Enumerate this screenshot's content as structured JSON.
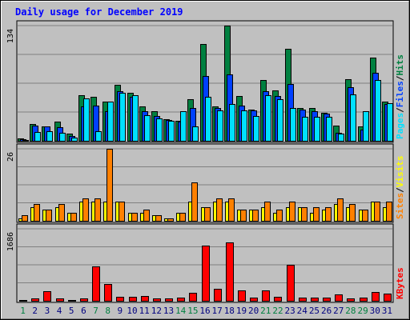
{
  "chart_data": {
    "type": "bar",
    "title": "Daily usage for December 2019",
    "categories": [
      "1",
      "2",
      "3",
      "4",
      "5",
      "6",
      "7",
      "8",
      "9",
      "10",
      "11",
      "12",
      "13",
      "14",
      "15",
      "16",
      "17",
      "18",
      "19",
      "20",
      "21",
      "22",
      "23",
      "24",
      "25",
      "26",
      "27",
      "28",
      "29",
      "30",
      "31"
    ],
    "weekend_days": [
      "1",
      "7",
      "8",
      "14",
      "15",
      "21",
      "22",
      "28",
      "29"
    ],
    "panels": [
      {
        "name": "hits-files-pages",
        "ymax": 134,
        "ymax_label": "134",
        "legend": [
          {
            "label": "Pages",
            "color": "#00e0ff"
          },
          {
            "label": "Files",
            "color": "#0040ff"
          },
          {
            "label": "Hits",
            "color": "#008040"
          }
        ],
        "separators": [
          "/",
          "/"
        ],
        "series": [
          {
            "name": "Hits",
            "color": "#008040",
            "values": [
              3,
              20,
              17,
              22,
              8,
              53,
              51,
              46,
              65,
              56,
              40,
              34,
              25,
              23,
              48,
              113,
              40,
              134,
              52,
              36,
              71,
              59,
              107,
              38,
              38,
              33,
              18,
              72,
              17,
              97,
              46
            ]
          },
          {
            "name": "Files",
            "color": "#0040ff",
            "values": [
              2,
              18,
              17,
              16,
              6,
              40,
              41,
              34,
              58,
              51,
              34,
              29,
              24,
              22,
              38,
              75,
              38,
              77,
              41,
              35,
              58,
              52,
              66,
              36,
              34,
              32,
              9,
              62,
              13,
              79,
              43
            ]
          },
          {
            "name": "Pages",
            "color": "#00e0ff",
            "values": [
              1,
              10,
              11,
              9,
              4,
              49,
              11,
              46,
              56,
              53,
              30,
              26,
              23,
              34,
              17,
              51,
              35,
              43,
              35,
              29,
              53,
              48,
              38,
              28,
              28,
              28,
              8,
              54,
              34,
              71,
              44
            ]
          }
        ]
      },
      {
        "name": "visits-sites",
        "ymax": 26,
        "ymax_label": "26",
        "legend": [
          {
            "label": "Sites",
            "color": "#ff8000"
          },
          {
            "label": "Visits",
            "color": "#ffff00"
          }
        ],
        "separators": [
          "/"
        ],
        "series": [
          {
            "name": "Visits",
            "color": "#ffff00",
            "values": [
              1,
              5,
              4,
              5,
              3,
              7,
              7,
              7,
              7,
              3,
              3,
              2,
              1,
              3,
              7,
              5,
              7,
              7,
              4,
              4,
              5,
              3,
              5,
              5,
              3,
              4,
              6,
              5,
              4,
              7,
              5
            ]
          },
          {
            "name": "Sites",
            "color": "#ff8000",
            "values": [
              2,
              6,
              4,
              6,
              3,
              8,
              8,
              26,
              7,
              3,
              4,
              2,
              1,
              3,
              14,
              5,
              8,
              8,
              4,
              4,
              7,
              4,
              7,
              5,
              5,
              5,
              8,
              6,
              4,
              7,
              7
            ]
          }
        ]
      },
      {
        "name": "kbytes",
        "ymax": 1686,
        "ymax_label": "1686",
        "legend": [
          {
            "label": "KBytes",
            "color": "#ff0000"
          }
        ],
        "separators": [],
        "series": [
          {
            "name": "KBytes",
            "color": "#ff0000",
            "values": [
              20,
              60,
              230,
              60,
              20,
              60,
              810,
              400,
              100,
              100,
              120,
              60,
              60,
              80,
              190,
              1300,
              280,
              1360,
              240,
              80,
              240,
              100,
              840,
              80,
              80,
              80,
              150,
              50,
              70,
              200,
              160
            ]
          }
        ]
      }
    ]
  }
}
